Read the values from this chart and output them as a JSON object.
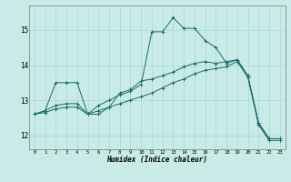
{
  "xlabel": "Humidex (Indice chaleur)",
  "bg_color": "#c8ebe8",
  "line_color": "#1a6b6b",
  "grid_color": "#a8d8d4",
  "xlim": [
    -0.5,
    23.5
  ],
  "ylim": [
    11.6,
    15.7
  ],
  "yticks": [
    12,
    13,
    14,
    15
  ],
  "xticks": [
    0,
    1,
    2,
    3,
    4,
    5,
    6,
    7,
    8,
    9,
    10,
    11,
    12,
    13,
    14,
    15,
    16,
    17,
    18,
    19,
    20,
    21,
    22,
    23
  ],
  "s1_x": [
    0,
    1,
    2,
    3,
    4,
    5,
    6,
    7,
    8,
    9,
    10,
    11,
    12,
    13,
    14,
    15,
    16,
    17,
    18,
    19,
    20,
    21,
    22,
    23
  ],
  "s1_y": [
    12.6,
    12.7,
    13.5,
    13.5,
    13.5,
    12.6,
    12.6,
    12.8,
    13.2,
    13.3,
    13.55,
    13.6,
    13.7,
    13.8,
    13.95,
    14.05,
    14.1,
    14.05,
    14.1,
    14.15,
    13.7,
    12.35,
    11.9,
    11.9
  ],
  "s2_x": [
    0,
    1,
    2,
    3,
    4,
    5,
    6,
    7,
    8,
    9,
    10,
    11,
    12,
    13,
    14,
    15,
    16,
    17,
    18,
    19,
    20,
    21,
    22,
    23
  ],
  "s2_y": [
    12.6,
    12.7,
    12.85,
    12.9,
    12.9,
    12.6,
    12.85,
    13.0,
    13.15,
    13.25,
    13.45,
    14.95,
    14.95,
    15.35,
    15.05,
    15.05,
    14.7,
    14.5,
    14.05,
    14.15,
    13.7,
    12.35,
    11.9,
    11.9
  ],
  "s3_x": [
    0,
    1,
    2,
    3,
    4,
    5,
    6,
    7,
    8,
    9,
    10,
    11,
    12,
    13,
    14,
    15,
    16,
    17,
    18,
    19,
    20,
    21,
    22,
    23
  ],
  "s3_y": [
    12.6,
    12.65,
    12.75,
    12.8,
    12.8,
    12.6,
    12.7,
    12.8,
    12.9,
    13.0,
    13.1,
    13.2,
    13.35,
    13.5,
    13.6,
    13.75,
    13.85,
    13.9,
    13.95,
    14.1,
    13.65,
    12.3,
    11.85,
    11.85
  ]
}
